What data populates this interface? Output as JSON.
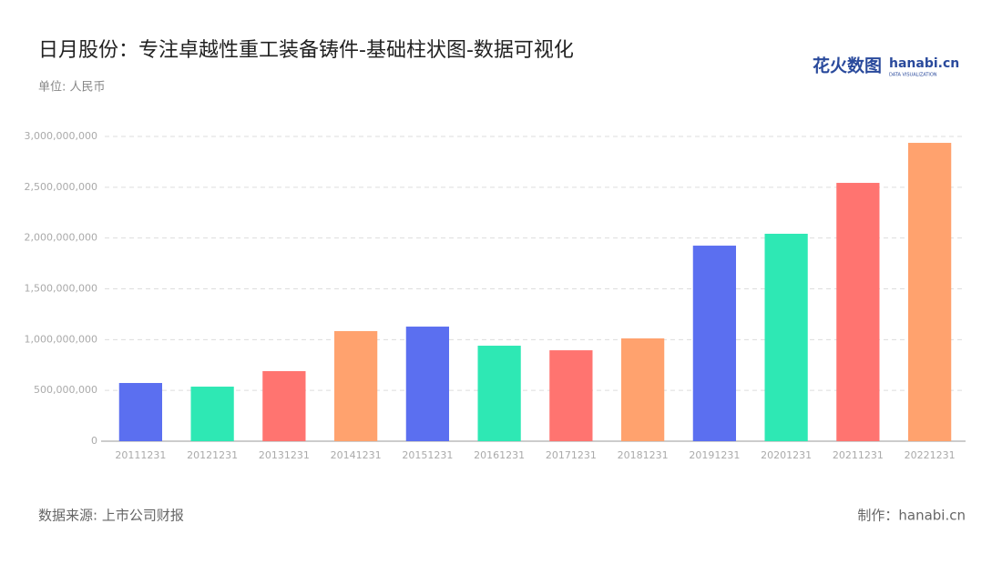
{
  "chart_data": {
    "type": "bar",
    "title": "日月股份：专注卓越性重工装备铸件-基础柱状图-数据可视化",
    "subtitle": "单位: 人民币",
    "source": "数据来源: 上市公司财报",
    "credit": "制作：hanabi.cn",
    "logo": {
      "name": "花火数图",
      "brand": "hanabi.cn",
      "tagline": "DATA VISUALIZATION"
    },
    "categories": [
      "20111231",
      "20121231",
      "20131231",
      "20141231",
      "20151231",
      "20161231",
      "20171231",
      "20181231",
      "20191231",
      "20201231",
      "20211231",
      "20221231"
    ],
    "values": [
      573000000,
      537000000,
      690000000,
      1084000000,
      1128000000,
      940000000,
      895000000,
      1012000000,
      1925000000,
      2042000000,
      2543000000,
      2937000000
    ],
    "colors": [
      "#5b6ff0",
      "#2ee8b4",
      "#ff7470",
      "#ffa26e",
      "#5b6ff0",
      "#2ee8b4",
      "#ff7470",
      "#ffa26e",
      "#5b6ff0",
      "#2ee8b4",
      "#ff7470",
      "#ffa26e"
    ],
    "ylim": [
      0,
      3000000000
    ],
    "yticks": [
      0,
      {
        "value": 500000000,
        "label": "500,000,000"
      },
      {
        "value": 1000000000,
        "label": "1,000,000,000"
      },
      {
        "value": 1500000000,
        "label": "1,500,000,000"
      },
      {
        "value": 2000000000,
        "label": "2,000,000,000"
      },
      {
        "value": 2500000000,
        "label": "2,500,000,000"
      },
      {
        "value": 3000000000,
        "label": "3,000,000,000"
      }
    ],
    "grid": true
  }
}
